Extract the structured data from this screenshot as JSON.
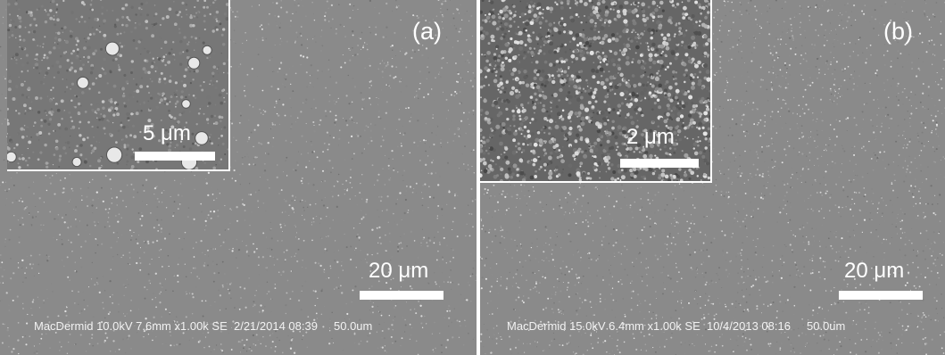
{
  "panels": {
    "a": {
      "label": "(a)",
      "inset_scale": "5 μm",
      "main_scale": "20 μm",
      "footer": "MacDermid 10.0kV 7.6mm x1.00k SE  2/21/2014 08:39     50.0um"
    },
    "b": {
      "label": "(b)",
      "inset_scale": "2 μm",
      "main_scale": "20 μm",
      "footer": "MacDermid 15.0kV 6.4mm x1.00k SE  10/4/2013 08:16     50.0um"
    }
  },
  "colors": {
    "background_gray": "#8a8a8a",
    "annotation": "#ffffff"
  }
}
